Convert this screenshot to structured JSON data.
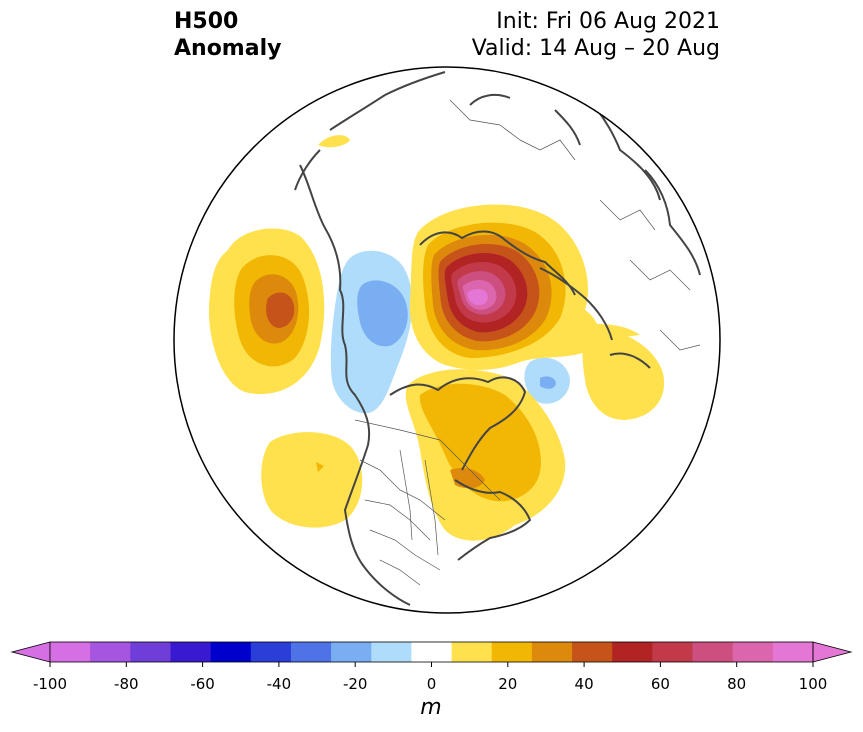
{
  "header": {
    "variable_line1": "H500",
    "variable_line2": "Anomaly",
    "init": "Init: Fri 06 Aug 2021",
    "valid": "Valid: 14 Aug – 20 Aug"
  },
  "colorbar": {
    "unit": "m",
    "ticks": [
      "-100",
      "-80",
      "-60",
      "-40",
      "-20",
      "0",
      "20",
      "40",
      "60",
      "80",
      "100"
    ],
    "levels": [
      -100,
      -90,
      -80,
      -70,
      -60,
      -50,
      -40,
      -30,
      -20,
      -10,
      10,
      20,
      30,
      40,
      50,
      60,
      70,
      80,
      90,
      100
    ],
    "colors": [
      "#d66fe3",
      "#a655e0",
      "#6f3dd8",
      "#3a1ad0",
      "#0000cc",
      "#2a3ed8",
      "#4f73e6",
      "#7aaef2",
      "#aedcfa",
      "#ffffff",
      "#ffe14d",
      "#f2b705",
      "#dd8a0c",
      "#c6531a",
      "#b22424",
      "#c23a4a",
      "#cc4f80",
      "#dc66ad",
      "#e476d6"
    ],
    "under_color": "#d66fe3",
    "over_color": "#e476d6"
  },
  "anomalies": [
    {
      "name": "pacific-ridge",
      "sign": "positive",
      "peak": "50-60"
    },
    {
      "name": "western-trough",
      "sign": "negative",
      "peak": "-30 to -40"
    },
    {
      "name": "arctic-ridge",
      "sign": "positive",
      "peak": "90-100"
    },
    {
      "name": "europe-ridge",
      "sign": "positive",
      "peak": "10-20"
    },
    {
      "name": "atlantic-trough",
      "sign": "negative",
      "peak": "-30 to -40"
    },
    {
      "name": "eastern-canada-ridge",
      "sign": "positive",
      "peak": "20-30"
    },
    {
      "name": "east-pacific-ridge",
      "sign": "positive",
      "peak": "10-20"
    }
  ]
}
